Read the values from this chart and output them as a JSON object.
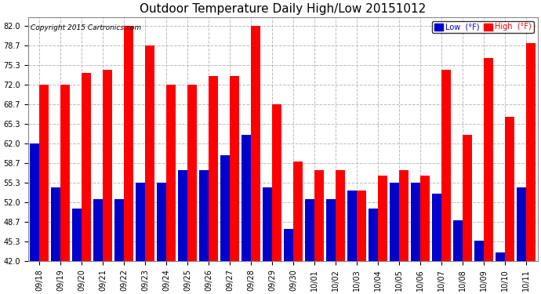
{
  "title": "Outdoor Temperature Daily High/Low 20151012",
  "copyright": "Copyright 2015 Cartronics.com",
  "categories": [
    "09/18",
    "09/19",
    "09/20",
    "09/21",
    "09/22",
    "09/23",
    "09/24",
    "09/25",
    "09/26",
    "09/27",
    "09/28",
    "09/29",
    "09/30",
    "10/01",
    "10/02",
    "10/03",
    "10/04",
    "10/05",
    "10/06",
    "10/07",
    "10/08",
    "10/09",
    "10/10",
    "10/11"
  ],
  "high_vals": [
    72.0,
    72.0,
    74.0,
    74.5,
    82.0,
    78.7,
    72.0,
    72.0,
    73.5,
    73.5,
    82.0,
    68.7,
    59.0,
    57.5,
    57.5,
    54.0,
    56.5,
    57.5,
    56.5,
    74.5,
    63.5,
    76.5,
    66.5,
    79.0
  ],
  "low_vals": [
    62.0,
    54.5,
    51.0,
    52.5,
    52.5,
    55.3,
    55.3,
    57.5,
    57.5,
    60.0,
    63.5,
    54.5,
    47.5,
    52.5,
    52.5,
    54.0,
    51.0,
    55.3,
    55.3,
    53.5,
    49.0,
    45.5,
    43.5,
    54.5
  ],
  "high_color": "#ff0000",
  "low_color": "#0000cc",
  "bg_color": "#ffffff",
  "plot_bg_color": "#ffffff",
  "grid_color": "#bbbbbb",
  "ylim": [
    42.0,
    83.5
  ],
  "yticks": [
    42.0,
    45.3,
    48.7,
    52.0,
    55.3,
    58.7,
    62.0,
    65.3,
    68.7,
    72.0,
    75.3,
    78.7,
    82.0
  ],
  "title_fontsize": 11,
  "tick_fontsize": 7,
  "legend_low_label": "Low  (°F)",
  "legend_high_label": "High  (°F)"
}
